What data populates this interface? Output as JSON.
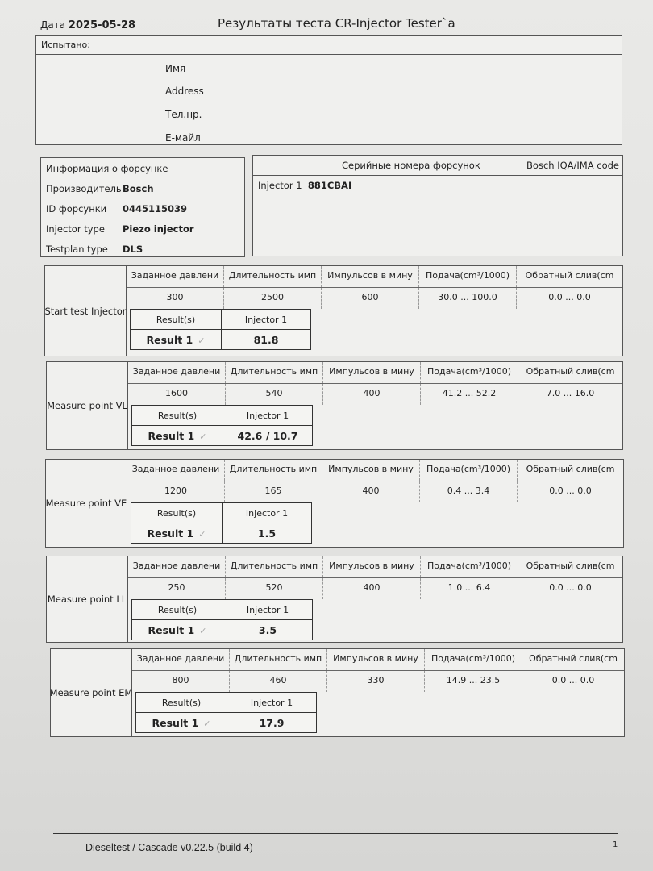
{
  "header": {
    "date_label": "Дата",
    "date": "2025-05-28",
    "title": "Результаты теста CR-Injector Tester`a"
  },
  "tested": {
    "title": "Испытано:",
    "fields": [
      "Имя",
      "Address",
      "Тел.нр.",
      "E-майл"
    ]
  },
  "injector_info": {
    "title": "Информация о форсунке",
    "rows": [
      {
        "label": "Производитель",
        "value": "Bosch"
      },
      {
        "label": "ID форсунки",
        "value": "0445115039"
      },
      {
        "label": "Injector type",
        "value": "Piezo injector"
      },
      {
        "label": "Testplan type",
        "value": "DLS"
      }
    ]
  },
  "serials": {
    "title": "Серийные номера форсунок",
    "code_title": "Bosch IQA/IMA code",
    "injector_label": "Injector 1",
    "injector_serial": "881CBAI"
  },
  "columns": [
    "Заданное давлени",
    "Длительность имп",
    "Импульсов в мину",
    "Подача(cm³/1000)",
    "Обратный слив(cm"
  ],
  "result_headers": {
    "results": "Result(s)",
    "injector": "Injector 1",
    "row_label": "Result 1",
    "check": "✓"
  },
  "tests": [
    {
      "name": "Start test Injector",
      "values": [
        "300",
        "2500",
        "600",
        "30.0 ... 100.0",
        "0.0 ... 0.0"
      ],
      "result": "81.8"
    },
    {
      "name": "Measure point VL",
      "values": [
        "1600",
        "540",
        "400",
        "41.2 ... 52.2",
        "7.0 ... 16.0"
      ],
      "result": "42.6 / 10.7"
    },
    {
      "name": "Measure point VE",
      "values": [
        "1200",
        "165",
        "400",
        "0.4 ... 3.4",
        "0.0 ... 0.0"
      ],
      "result": "1.5"
    },
    {
      "name": "Measure point LL",
      "values": [
        "250",
        "520",
        "400",
        "1.0 ... 6.4",
        "0.0 ... 0.0"
      ],
      "result": "3.5"
    },
    {
      "name": "Measure point EM",
      "values": [
        "800",
        "460",
        "330",
        "14.9 ... 23.5",
        "0.0 ... 0.0"
      ],
      "result": "17.9"
    }
  ],
  "footer": {
    "software": "Dieseltest / Cascade v0.22.5 (build 4)",
    "page": "1"
  }
}
